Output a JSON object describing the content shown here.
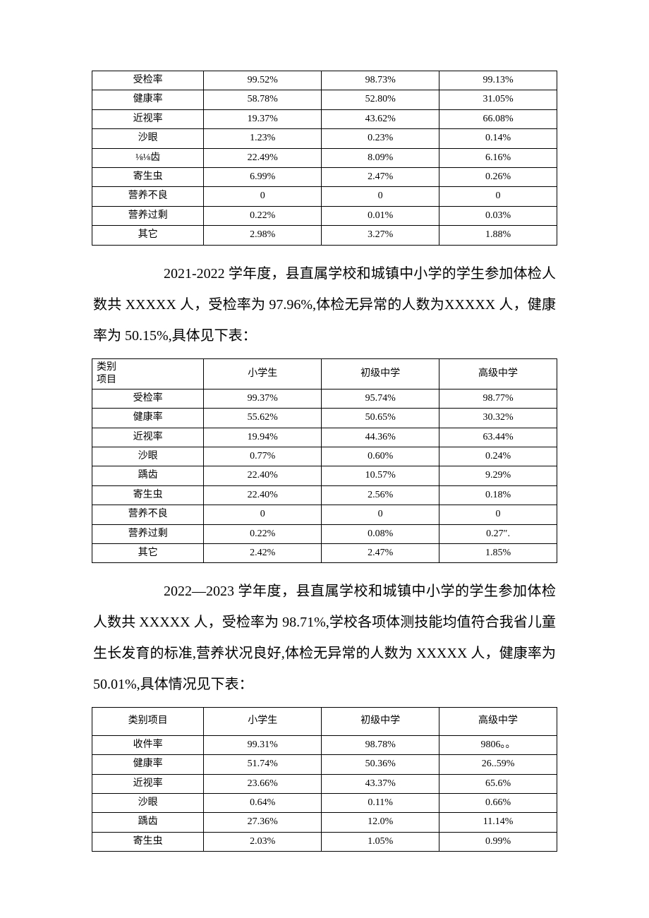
{
  "table1": {
    "rows": [
      {
        "label": "受检率",
        "c1": "99.52%",
        "c2": "98.73%",
        "c3": "99.13%"
      },
      {
        "label": "健康率",
        "c1": "58.78%",
        "c2": "52.80%",
        "c3": "31.05%"
      },
      {
        "label": "近视率",
        "c1": "19.37%",
        "c2": "43.62%",
        "c3": "66.08%"
      },
      {
        "label": "沙眼",
        "c1": "1.23%",
        "c2": "0.23%",
        "c3": "0.14%"
      },
      {
        "label": "⅛⅛齿",
        "c1": "22.49%",
        "c2": "8.09%",
        "c3": "6.16%"
      },
      {
        "label": "寄生虫",
        "c1": "6.99%",
        "c2": "2.47%",
        "c3": "0.26%"
      },
      {
        "label": "营养不良",
        "c1": "0",
        "c2": "0",
        "c3": "0"
      },
      {
        "label": "营养过剩",
        "c1": "0.22%",
        "c2": "0.01%",
        "c3": "0.03%"
      },
      {
        "label": "其它",
        "c1": "2.98%",
        "c2": "3.27%",
        "c3": "1.88%"
      }
    ]
  },
  "para2": "2021-2022 学年度，县直属学校和城镇中小学的学生参加体检人数共 XXXXX 人，受检率为 97.96%,体检无异常的人数为XXXXX 人，健康率为 50.15%,具体见下表：",
  "table2": {
    "header_label1": "类别",
    "header_label2": "项目",
    "h1": "小学生",
    "h2": "初级中学",
    "h3": "高级中学",
    "rows": [
      {
        "label": "受检率",
        "c1": "99.37%",
        "c2": "95.74%",
        "c3": "98.77%"
      },
      {
        "label": "健康率",
        "c1": "55.62%",
        "c2": "50.65%",
        "c3": "30.32%"
      },
      {
        "label": "近视率",
        "c1": "19.94%",
        "c2": "44.36%",
        "c3": "63.44%"
      },
      {
        "label": "沙眼",
        "c1": "0.77%",
        "c2": "0.60%",
        "c3": "0.24%"
      },
      {
        "label": "踽齿",
        "c1": "22.40%",
        "c2": "10.57%",
        "c3": "9.29%"
      },
      {
        "label": "寄生虫",
        "c1": "22.40%",
        "c2": "2.56%",
        "c3": "0.18%"
      },
      {
        "label": "营养不良",
        "c1": "0",
        "c2": "0",
        "c3": "0"
      },
      {
        "label": "营养过剩",
        "c1": "0.22%",
        "c2": "0.08%",
        "c3": "0.27″."
      },
      {
        "label": "其它",
        "c1": "2.42%",
        "c2": "2.47%",
        "c3": "1.85%"
      }
    ]
  },
  "para3": "2022—2023 学年度，县直属学校和城镇中小学的学生参加体检人数共 XXXXX 人，受检率为 98.71%,学校各项体测技能均值符合我省儿童生长发育的标准,营养状况良好,体检无异常的人数为 XXXXX 人，健康率为 50.01%,具体情况见下表：",
  "table3": {
    "header_label": "类别项目",
    "h1": "小学生",
    "h2": "初级中学",
    "h3": "高级中学",
    "rows": [
      {
        "label": "收件率",
        "c1": "99.31%",
        "c2": "98.78%",
        "c3": "9806。。"
      },
      {
        "label": "健康率",
        "c1": "51.74%",
        "c2": "50.36%",
        "c3": "26..59%"
      },
      {
        "label": "近视率",
        "c1": "23.66%",
        "c2": "43.37%",
        "c3": "65.6%"
      },
      {
        "label": "沙眼",
        "c1": "0.64%",
        "c2": "0.11%",
        "c3": "0.66%"
      },
      {
        "label": "踽齿",
        "c1": "27.36%",
        "c2": "12.0%",
        "c3": "11.14%"
      },
      {
        "label": "寄生虫",
        "c1": "2.03%",
        "c2": "1.05%",
        "c3": "0.99%"
      }
    ]
  }
}
